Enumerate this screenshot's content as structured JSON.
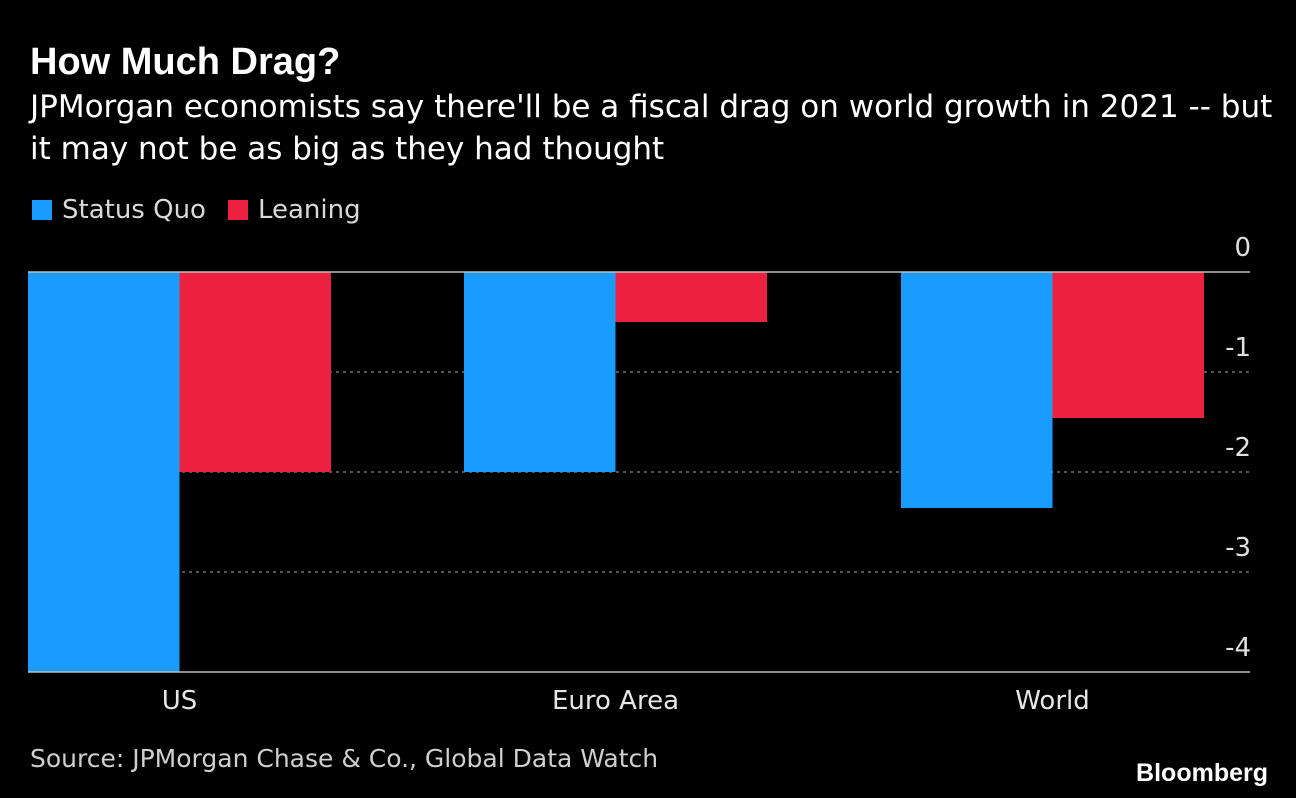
{
  "title": "How Much Drag?",
  "subtitle": "JPMorgan economists say there'll be a fiscal drag on world growth in 2021 -- but it may not be as big as they had thought",
  "source": "Source: JPMorgan Chase & Co., Global Data Watch",
  "brand": "Bloomberg",
  "colors": {
    "background": "#000000",
    "status_quo": "#1a9cff",
    "leaning": "#ec2140",
    "grid": "#6e6e6e",
    "axis": "#bdbdbd",
    "text": "#ffffff"
  },
  "chart_data": {
    "type": "bar",
    "categories": [
      "US",
      "Euro Area",
      "World"
    ],
    "series": [
      {
        "name": "Status Quo",
        "values": [
          -4.0,
          -2.0,
          -2.36
        ]
      },
      {
        "name": "Leaning",
        "values": [
          -2.0,
          -0.5,
          -1.46
        ]
      }
    ],
    "yticks": [
      0,
      -1,
      -2,
      -3,
      -4
    ],
    "ytick_labels": [
      "0",
      "-1",
      "-2",
      "-3",
      "-4"
    ],
    "ylim": [
      -4,
      0
    ],
    "legend_position": "top-left",
    "grid": true
  }
}
